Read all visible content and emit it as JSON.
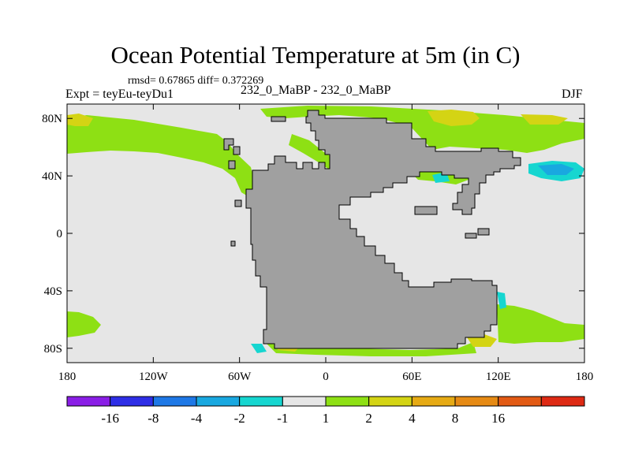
{
  "title": "Ocean Potential Temperature at 5m (in C)",
  "stats": "rmsd= 0.67865 diff= 0.372269",
  "expt": "Expt = teyEu-teyDu1",
  "subtitle": "232_0_MaBP - 232_0_MaBP",
  "season": "DJF",
  "map": {
    "lon_range": [
      -180,
      180
    ],
    "lat_range": [
      -90,
      90
    ],
    "land_color": "#a0a0a0",
    "ocean_neutral_color": "#e6e6e6",
    "x_ticks": [
      {
        "lon": -180,
        "label": "180"
      },
      {
        "lon": -120,
        "label": "120W"
      },
      {
        "lon": -60,
        "label": "60W"
      },
      {
        "lon": 0,
        "label": "0"
      },
      {
        "lon": 60,
        "label": "60E"
      },
      {
        "lon": 120,
        "label": "120E"
      },
      {
        "lon": 180,
        "label": "180"
      }
    ],
    "y_ticks": [
      {
        "lat": 80,
        "label": "80N"
      },
      {
        "lat": 40,
        "label": "40N"
      },
      {
        "lat": 0,
        "label": "0"
      },
      {
        "lat": -40,
        "label": "40S"
      },
      {
        "lat": -80,
        "label": "80S"
      }
    ]
  },
  "colorbar": {
    "colors": [
      "#8a1ee6",
      "#2e2ee6",
      "#1e78e6",
      "#19a8e0",
      "#16d6d0",
      "#e6e6e6",
      "#8ee014",
      "#d4d414",
      "#e6aa14",
      "#e68a14",
      "#e25a14",
      "#de2a14"
    ],
    "labels": [
      "-16",
      "-8",
      "-4",
      "-2",
      "-1",
      "1",
      "2",
      "4",
      "8",
      "16"
    ]
  },
  "anomaly_regions": [
    {
      "name": "north-pacific-band",
      "level": "1 to 2"
    },
    {
      "name": "arctic-warm-patch",
      "level": "2 to 4"
    },
    {
      "name": "north-tethys-warm-patch",
      "level": "2 to 4"
    },
    {
      "name": "southern-ocean-warm-patch",
      "level": "2 to 4"
    },
    {
      "name": "east-ocean-cold-patch",
      "level": "-2 to -1"
    },
    {
      "name": "south-coast-cold-patch",
      "level": "-2 to -1"
    }
  ]
}
